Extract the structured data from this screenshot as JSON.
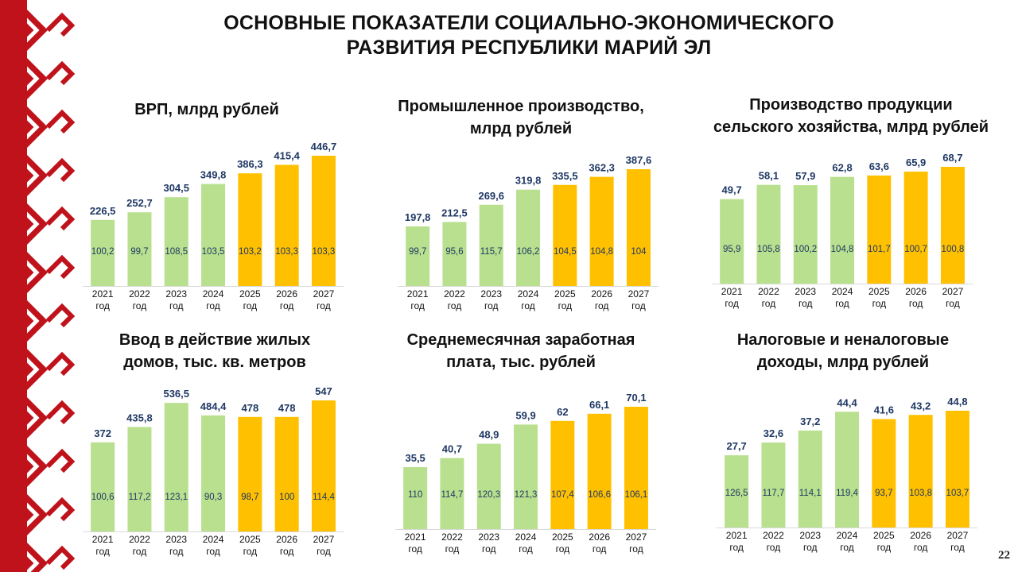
{
  "title_line1": "ОСНОВНЫЕ ПОКАЗАТЕЛИ СОЦИАЛЬНО-ЭКОНОМИЧЕСКОГО",
  "title_line2": "РАЗВИТИЯ РЕСПУБЛИКИ МАРИЙ ЭЛ",
  "page_number": "22",
  "colors": {
    "actual": "#b8e08e",
    "forecast": "#ffc000",
    "value_label": "#1f3864",
    "ornament": "#c0121b"
  },
  "chart_data": [
    {
      "type": "bar",
      "title": [
        "ВРП, млрд рублей"
      ],
      "categories": [
        "2021 год",
        "2022 год",
        "2023 год",
        "2024 год",
        "2025 год",
        "2026 год",
        "2027 год"
      ],
      "values": [
        226.5,
        252.7,
        304.5,
        349.8,
        386.3,
        415.4,
        446.7
      ],
      "value_labels": [
        "226,5",
        "252,7",
        "304,5",
        "349,8",
        "386,3",
        "415,4",
        "446,7"
      ],
      "inner_labels": [
        "100,2",
        "99,7",
        "108,5",
        "103,5",
        "103,2",
        "103,3",
        "103,3"
      ],
      "forecast_from_index": 4,
      "ylim": [
        0,
        446.7
      ]
    },
    {
      "type": "bar",
      "title": [
        "Промышленное производство,",
        "млрд рублей"
      ],
      "categories": [
        "2021 год",
        "2022 год",
        "2023 год",
        "2024 год",
        "2025 год",
        "2026 год",
        "2027 год"
      ],
      "values": [
        197.8,
        212.5,
        269.6,
        319.8,
        335.5,
        362.3,
        387.6
      ],
      "value_labels": [
        "197,8",
        "212,5",
        "269,6",
        "319,8",
        "335,5",
        "362,3",
        "387,6"
      ],
      "inner_labels": [
        "99,7",
        "95,6",
        "115,7",
        "106,2",
        "104,5",
        "104,8",
        "104"
      ],
      "forecast_from_index": 4,
      "ylim": [
        0,
        387.6
      ]
    },
    {
      "type": "bar",
      "title": [
        "Производство продукции",
        "сельского хозяйства, млрд рублей"
      ],
      "categories": [
        "2021 год",
        "2022 год",
        "2023 год",
        "2024 год",
        "2025 год",
        "2026 год",
        "2027 год"
      ],
      "values": [
        49.7,
        58.1,
        57.9,
        62.8,
        63.6,
        65.9,
        68.7
      ],
      "value_labels": [
        "49,7",
        "58,1",
        "57,9",
        "62,8",
        "63,6",
        "65,9",
        "68,7"
      ],
      "inner_labels": [
        "95,9",
        "105,8",
        "100,2",
        "104,8",
        "101,7",
        "100,7",
        "100,8"
      ],
      "forecast_from_index": 4,
      "ylim": [
        0,
        68.7
      ]
    },
    {
      "type": "bar",
      "title": [
        "Ввод в действие жилых",
        "домов, тыс. кв. метров"
      ],
      "categories": [
        "2021 год",
        "2022 год",
        "2023 год",
        "2024 год",
        "2025 год",
        "2026 год",
        "2027 год"
      ],
      "values": [
        372,
        435.8,
        536.5,
        484.4,
        478,
        478,
        547
      ],
      "value_labels": [
        "372",
        "435,8",
        "536,5",
        "484,4",
        "478",
        "478",
        "547"
      ],
      "inner_labels": [
        "100,6",
        "117,2",
        "123,1",
        "90,3",
        "98,7",
        "100",
        "114,4"
      ],
      "forecast_from_index": 4,
      "ylim": [
        0,
        547
      ]
    },
    {
      "type": "bar",
      "title": [
        "Среднемесячная заработная",
        "плата, тыс. рублей"
      ],
      "categories": [
        "2021 год",
        "2022 год",
        "2023 год",
        "2024 год",
        "2025 год",
        "2026 год",
        "2027 год"
      ],
      "values": [
        35.5,
        40.7,
        48.9,
        59.9,
        62,
        66.1,
        70.1
      ],
      "value_labels": [
        "35,5",
        "40,7",
        "48,9",
        "59,9",
        "62",
        "66,1",
        "70,1"
      ],
      "inner_labels": [
        "110",
        "114,7",
        "120,3",
        "121,3",
        "107,4",
        "106,6",
        "106,1"
      ],
      "forecast_from_index": 4,
      "ylim": [
        0,
        70.1
      ]
    },
    {
      "type": "bar",
      "title": [
        "Налоговые и неналоговые",
        "доходы, млрд рублей"
      ],
      "categories": [
        "2021 год",
        "2022 год",
        "2023 год",
        "2024 год",
        "2025 год",
        "2026 год",
        "2027 год"
      ],
      "values": [
        27.7,
        32.6,
        37.2,
        44.4,
        41.6,
        43.2,
        44.8
      ],
      "value_labels": [
        "27,7",
        "32,6",
        "37,2",
        "44,4",
        "41,6",
        "43,2",
        "44,8"
      ],
      "inner_labels": [
        "126,5",
        "117,7",
        "114,1",
        "119,4",
        "93,7",
        "103,8",
        "103,7"
      ],
      "forecast_from_index": 4,
      "ylim": [
        0,
        44.8
      ]
    }
  ]
}
